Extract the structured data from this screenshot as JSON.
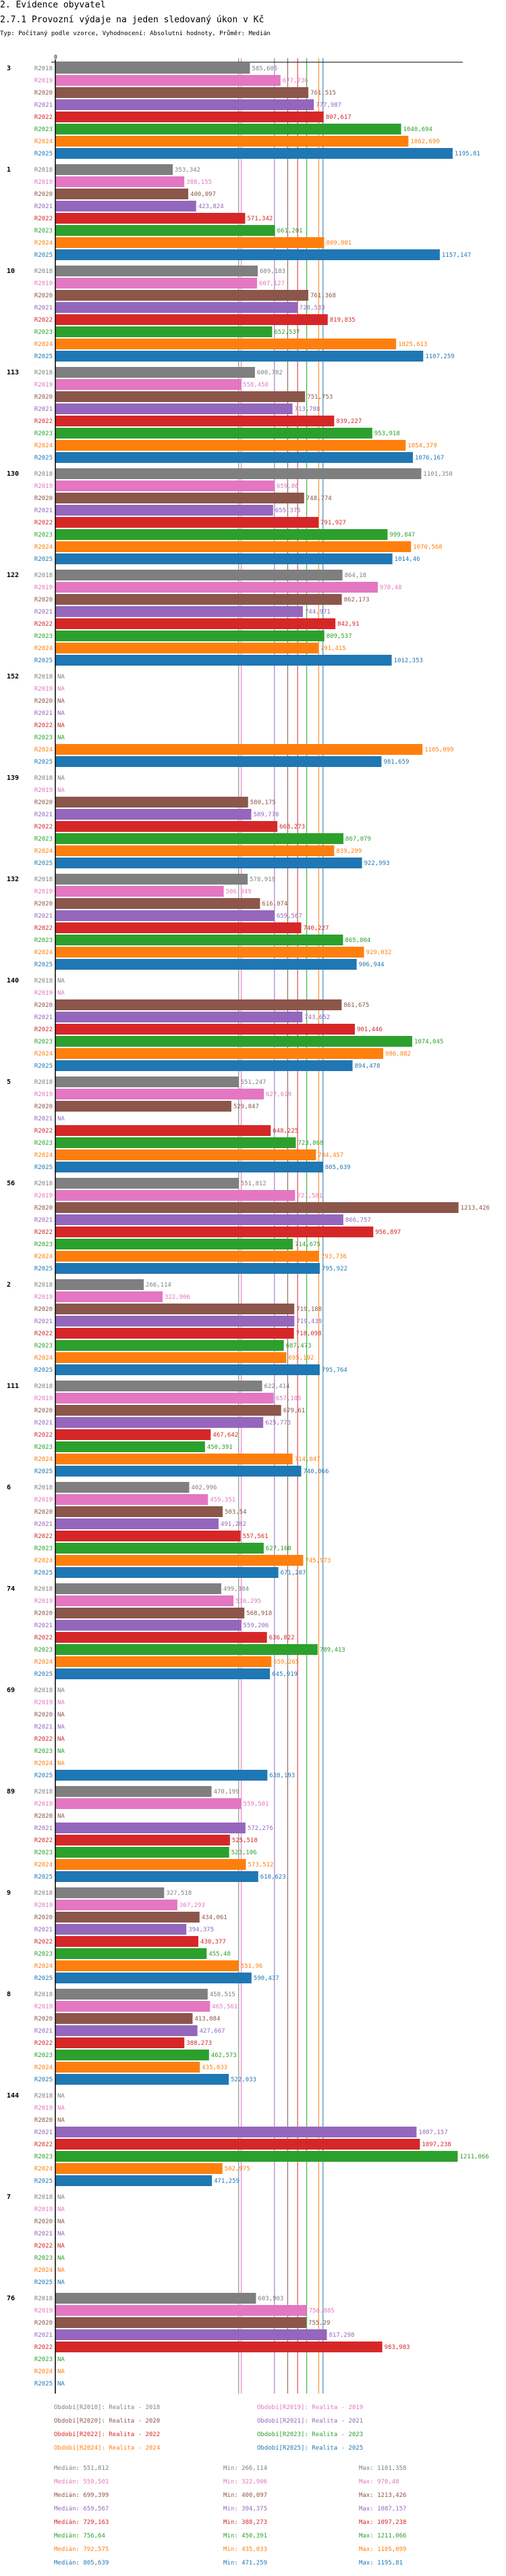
{
  "header": {
    "section_title": "2. Evidence obyvatel",
    "chart_title": "2.7.1 Provozní výdaje na jeden sledovaný úkon v Kč",
    "subtitle": "Typ: Počítaný podle vzorce, Vyhodnocení: Absolutní hodnoty, Průměr: Medián"
  },
  "chart_data": {
    "type": "bar",
    "orientation": "horizontal",
    "title": "2.7.1 Provozní výdaje na jeden sledovaný úkon v Kč",
    "xlabel": "",
    "ylabel": "",
    "x_tick_labels": [
      "0"
    ],
    "xlim": [
      0,
      1213.426
    ],
    "grid": false,
    "legend_position": "bottom",
    "decimal_separator": ",",
    "na_label": "NA",
    "series": [
      {
        "name": "R2018",
        "legend": "Období[R2018]: Realita - 2018",
        "color": "#7f7f7f"
      },
      {
        "name": "R2019",
        "legend": "Období[R2019]: Realita - 2019",
        "color": "#e377c2"
      },
      {
        "name": "R2020",
        "legend": "Období[R2020]: Realita - 2020",
        "color": "#8c564b"
      },
      {
        "name": "R2021",
        "legend": "Období[R2021]: Realita - 2021",
        "color": "#9467bd"
      },
      {
        "name": "R2022",
        "legend": "Období[R2022]: Realita - 2022",
        "color": "#d62728"
      },
      {
        "name": "R2023",
        "legend": "Období[R2023]: Realita - 2023",
        "color": "#2ca02c"
      },
      {
        "name": "R2024",
        "legend": "Období[R2024]: Realita - 2024",
        "color": "#ff7f0e"
      },
      {
        "name": "R2025",
        "legend": "Období[R2025]: Realita - 2025",
        "color": "#1f77b4"
      }
    ],
    "categories": [
      "3",
      "1",
      "10",
      "113",
      "130",
      "122",
      "152",
      "139",
      "132",
      "140",
      "5",
      "56",
      "2",
      "111",
      "6",
      "74",
      "69",
      "89",
      "9",
      "8",
      "144",
      "7",
      "76"
    ],
    "values": [
      [
        585.605,
        677.736,
        761.515,
        777.987,
        807.617,
        1040.694,
        1062.699,
        1195.81
      ],
      [
        353.342,
        388.155,
        400.097,
        423.824,
        571.342,
        661.201,
        809.001,
        1157.147
      ],
      [
        609.183,
        607.127,
        761.368,
        728.533,
        819.835,
        652.537,
        1025.613,
        1107.259
      ],
      [
        600.782,
        558.458,
        751.753,
        713.788,
        839.227,
        953.918,
        1054.379,
        1076.167
      ],
      [
        1101.358,
        659.86,
        748.774,
        655.375,
        791.927,
        999.847,
        1070.568,
        1014.46
      ],
      [
        864.18,
        970.48,
        862.173,
        744.971,
        842.91,
        809.537,
        791.415,
        1012.353
      ],
      [
        null,
        null,
        null,
        null,
        null,
        null,
        1105.099,
        981.659
      ],
      [
        null,
        null,
        580.175,
        589.778,
        668.273,
        867.079,
        839.299,
        922.993
      ],
      [
        578.919,
        506.849,
        616.074,
        659.567,
        740.227,
        865.804,
        929.032,
        906.944
      ],
      [
        null,
        null,
        861.675,
        743.652,
        901.446,
        1074.045,
        986.882,
        894.478
      ],
      [
        551.247,
        627.619,
        529.847,
        null,
        648.225,
        723.868,
        784.457,
        805.639
      ],
      [
        551.812,
        721.581,
        1213.426,
        866.757,
        956.897,
        714.675,
        793.736,
        795.922
      ],
      [
        266.114,
        322.906,
        719.188,
        719.439,
        718.098,
        687.473,
        695.192,
        795.764
      ],
      [
        622.414,
        657.105,
        679.61,
        625.773,
        467.642,
        450.391,
        714.047,
        740.066
      ],
      [
        402.996,
        459.351,
        503.54,
        491.282,
        557.561,
        627.168,
        745.973,
        671.207
      ],
      [
        499.384,
        536.295,
        568.918,
        559.206,
        636.822,
        789.413,
        650.265,
        645.919
      ],
      [
        null,
        null,
        null,
        null,
        null,
        null,
        null,
        638.193
      ],
      [
        470.199,
        559.501,
        null,
        572.276,
        525.518,
        523.106,
        573.512,
        610.623
      ],
      [
        327.518,
        367.293,
        434.061,
        394.375,
        430.377,
        455.48,
        551.96,
        590.437
      ],
      [
        458.515,
        465.561,
        413.084,
        427.667,
        388.273,
        462.573,
        435.033,
        522.033
      ],
      [
        null,
        null,
        null,
        1087.157,
        1097.238,
        1211.066,
        502.975,
        471.259
      ],
      [
        null,
        null,
        null,
        null,
        null,
        null,
        null,
        null
      ],
      [
        603.903,
        756.885,
        755.29,
        817.298,
        983.983,
        null,
        null,
        null
      ]
    ],
    "value_labels": [
      [
        "585,605",
        "677,736",
        "761,515",
        "777,987",
        "807,617",
        "1040,694",
        "1062,699",
        "1195,81"
      ],
      [
        "353,342",
        "388,155",
        "400,097",
        "423,824",
        "571,342",
        "661,201",
        "809,001",
        "1157,147"
      ],
      [
        "609,183",
        "607,127",
        "761,368",
        "728,533",
        "819,835",
        "652,537",
        "1025,613",
        "1107,259"
      ],
      [
        "600,782",
        "558,458",
        "751,753",
        "713,788",
        "839,227",
        "953,918",
        "1054,379",
        "1076,167"
      ],
      [
        "1101,358",
        "659,86",
        "748,774",
        "655,375",
        "791,927",
        "999,847",
        "1070,568",
        "1014,46"
      ],
      [
        "864,18",
        "970,48",
        "862,173",
        "744,971",
        "842,91",
        "809,537",
        "791,415",
        "1012,353"
      ],
      [
        "NA",
        "NA",
        "NA",
        "NA",
        "NA",
        "NA",
        "1105,099",
        "981,659"
      ],
      [
        "NA",
        "NA",
        "580,175",
        "589,778",
        "668,273",
        "867,079",
        "839,299",
        "922,993"
      ],
      [
        "578,919",
        "506,849",
        "616,074",
        "659,567",
        "740,227",
        "865,804",
        "929,032",
        "906,944"
      ],
      [
        "NA",
        "NA",
        "861,675",
        "743,652",
        "901,446",
        "1074,045",
        "986,882",
        "894,478"
      ],
      [
        "551,247",
        "627,619",
        "529,847",
        "NA",
        "648,225",
        "723,868",
        "784,457",
        "805,639"
      ],
      [
        "551,812",
        "721,581",
        "1213,426",
        "866,757",
        "956,897",
        "714,675",
        "793,736",
        "795,922"
      ],
      [
        "266,114",
        "322,906",
        "719,188",
        "719,439",
        "718,098",
        "687,473",
        "695,192",
        "795,764"
      ],
      [
        "622,414",
        "657,105",
        "679,61",
        "625,773",
        "467,642",
        "450,391",
        "714,047",
        "740,066"
      ],
      [
        "402,996",
        "459,351",
        "503,54",
        "491,282",
        "557,561",
        "627,168",
        "745,973",
        "671,207"
      ],
      [
        "499,384",
        "536,295",
        "568,918",
        "559,206",
        "636,822",
        "789,413",
        "650,265",
        "645,919"
      ],
      [
        "NA",
        "NA",
        "NA",
        "NA",
        "NA",
        "NA",
        "NA",
        "638,193"
      ],
      [
        "470,199",
        "559,501",
        "NA",
        "572,276",
        "525,518",
        "523,106",
        "573,512",
        "610,623"
      ],
      [
        "327,518",
        "367,293",
        "434,061",
        "394,375",
        "430,377",
        "455,48",
        "551,96",
        "590,437"
      ],
      [
        "458,515",
        "465,561",
        "413,084",
        "427,667",
        "388,273",
        "462,573",
        "435,033",
        "522,033"
      ],
      [
        "NA",
        "NA",
        "NA",
        "1087,157",
        "1097,238",
        "1211,066",
        "502,975",
        "471,259"
      ],
      [
        "NA",
        "NA",
        "NA",
        "NA",
        "NA",
        "NA",
        "NA",
        "NA"
      ],
      [
        "603,903",
        "756,885",
        "755,29",
        "817,298",
        "983,983",
        "NA",
        "NA",
        "NA"
      ]
    ],
    "reference_lines": {
      "type": "median per series",
      "values": [
        551.812,
        559.501,
        699.399,
        659.567,
        729.163,
        756.64,
        792.575,
        805.639
      ]
    },
    "stats": [
      {
        "series": "R2018",
        "median": "Medián: 551,812",
        "min": "Min: 266,114",
        "max": "Max: 1101,358"
      },
      {
        "series": "R2019",
        "median": "Medián: 559,501",
        "min": "Min: 322,906",
        "max": "Max: 970,48"
      },
      {
        "series": "R2020",
        "median": "Medián: 699,399",
        "min": "Min: 400,097",
        "max": "Max: 1213,426"
      },
      {
        "series": "R2021",
        "median": "Medián: 659,567",
        "min": "Min: 394,375",
        "max": "Max: 1087,157"
      },
      {
        "series": "R2022",
        "median": "Medián: 729,163",
        "min": "Min: 388,273",
        "max": "Max: 1097,238"
      },
      {
        "series": "R2023",
        "median": "Medián: 756,64",
        "min": "Min: 450,391",
        "max": "Max: 1211,066"
      },
      {
        "series": "R2024",
        "median": "Medián: 792,575",
        "min": "Min: 435,033",
        "max": "Max: 1105,099"
      },
      {
        "series": "R2025",
        "median": "Medián: 805,639",
        "min": "Min: 471,259",
        "max": "Max: 1195,81"
      }
    ]
  }
}
